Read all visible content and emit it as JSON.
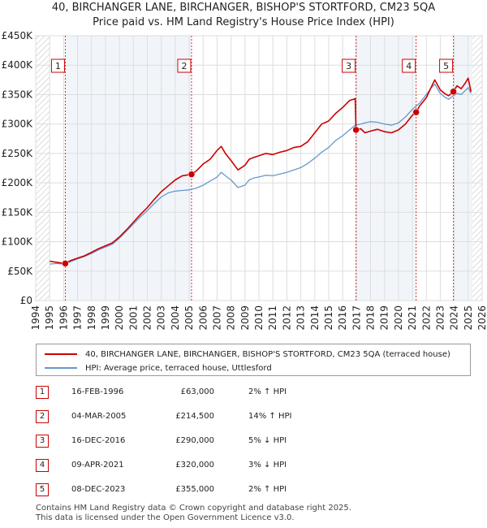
{
  "title_line1": "40, BIRCHANGER LANE, BIRCHANGER, BISHOP'S STORTFORD, CM23 5QA",
  "title_line2": "Price paid vs. HM Land Registry's House Price Index (HPI)",
  "colors": {
    "price_line": "#cc0000",
    "hpi_line": "#6699cc",
    "grid": "#dddddd",
    "plot_bg": "#ffffff",
    "shade": "#e8eef6",
    "hatch": "#bbbbbb"
  },
  "chart_data": {
    "type": "line",
    "xlim": [
      1994,
      2026
    ],
    "ylim": [
      0,
      450000
    ],
    "y_ticks": [
      0,
      50000,
      100000,
      150000,
      200000,
      250000,
      300000,
      350000,
      400000,
      450000
    ],
    "y_tick_labels": [
      "£0",
      "£50K",
      "£100K",
      "£150K",
      "£200K",
      "£250K",
      "£300K",
      "£350K",
      "£400K",
      "£450K"
    ],
    "x_ticks": [
      1994,
      1995,
      1996,
      1997,
      1998,
      1999,
      2000,
      2001,
      2002,
      2003,
      2004,
      2005,
      2006,
      2007,
      2008,
      2009,
      2010,
      2011,
      2012,
      2013,
      2014,
      2015,
      2016,
      2017,
      2018,
      2019,
      2020,
      2021,
      2022,
      2023,
      2024,
      2025,
      2026
    ],
    "data_range_years": [
      1995,
      2025.3
    ],
    "series": [
      {
        "name": "40, BIRCHANGER LANE, BIRCHANGER, BISHOP'S STORTFORD, CM23 5QA (terraced house)",
        "x": [
          1995.0,
          1995.5,
          1996.12,
          1996.5,
          1997.0,
          1997.5,
          1998.0,
          1998.5,
          1999.0,
          1999.5,
          2000.0,
          2000.5,
          2001.0,
          2001.5,
          2002.0,
          2002.5,
          2003.0,
          2003.5,
          2004.0,
          2004.5,
          2005.17,
          2005.5,
          2006.0,
          2006.5,
          2007.0,
          2007.3,
          2007.6,
          2008.0,
          2008.5,
          2009.0,
          2009.3,
          2009.6,
          2010.0,
          2010.5,
          2011.0,
          2011.5,
          2012.0,
          2012.5,
          2013.0,
          2013.5,
          2014.0,
          2014.5,
          2015.0,
          2015.5,
          2016.0,
          2016.5,
          2016.9,
          2016.96,
          2017.3,
          2017.6,
          2018.0,
          2018.5,
          2019.0,
          2019.5,
          2020.0,
          2020.5,
          2021.0,
          2021.27,
          2021.5,
          2022.0,
          2022.3,
          2022.6,
          2023.0,
          2023.3,
          2023.6,
          2023.94,
          2024.2,
          2024.5,
          2024.8,
          2025.0,
          2025.2
        ],
        "values": [
          67000,
          65000,
          63000,
          68000,
          72000,
          76000,
          82000,
          88000,
          93000,
          98000,
          108000,
          120000,
          133000,
          146000,
          158000,
          172000,
          185000,
          195000,
          205000,
          212000,
          214500,
          220000,
          232000,
          240000,
          255000,
          262000,
          250000,
          238000,
          222000,
          230000,
          240000,
          243000,
          246000,
          250000,
          248000,
          252000,
          255000,
          260000,
          262000,
          270000,
          285000,
          300000,
          305000,
          318000,
          328000,
          340000,
          343000,
          290000,
          292000,
          285000,
          288000,
          291000,
          287000,
          285000,
          290000,
          300000,
          315000,
          320000,
          330000,
          345000,
          360000,
          375000,
          358000,
          352000,
          348000,
          355000,
          365000,
          360000,
          370000,
          378000,
          355000
        ]
      },
      {
        "name": "HPI: Average price, terraced house, Uttlesford",
        "x": [
          1995.0,
          1995.5,
          1996.0,
          1996.5,
          1997.0,
          1997.5,
          1998.0,
          1998.5,
          1999.0,
          1999.5,
          2000.0,
          2000.5,
          2001.0,
          2001.5,
          2002.0,
          2002.5,
          2003.0,
          2003.5,
          2004.0,
          2004.5,
          2005.0,
          2005.5,
          2006.0,
          2006.5,
          2007.0,
          2007.3,
          2007.6,
          2008.0,
          2008.5,
          2009.0,
          2009.3,
          2009.6,
          2010.0,
          2010.5,
          2011.0,
          2011.5,
          2012.0,
          2012.5,
          2013.0,
          2013.5,
          2014.0,
          2014.5,
          2015.0,
          2015.5,
          2016.0,
          2016.5,
          2016.9,
          2017.3,
          2017.6,
          2018.0,
          2018.5,
          2019.0,
          2019.5,
          2020.0,
          2020.5,
          2021.0,
          2021.5,
          2022.0,
          2022.3,
          2022.6,
          2023.0,
          2023.3,
          2023.6,
          2023.94,
          2024.2,
          2024.5,
          2024.8,
          2025.0,
          2025.2
        ],
        "values": [
          62000,
          63000,
          62000,
          66000,
          71000,
          75000,
          80000,
          86000,
          91000,
          96000,
          106000,
          118000,
          130000,
          142000,
          153000,
          165000,
          176000,
          183000,
          186000,
          187000,
          188000,
          191000,
          196000,
          203000,
          210000,
          218000,
          212000,
          205000,
          192000,
          196000,
          205000,
          208000,
          210000,
          213000,
          212000,
          215000,
          218000,
          222000,
          226000,
          233000,
          242000,
          252000,
          260000,
          272000,
          280000,
          290000,
          298000,
          300000,
          302000,
          304000,
          303000,
          300000,
          298000,
          302000,
          312000,
          325000,
          335000,
          350000,
          360000,
          368000,
          352000,
          346000,
          342000,
          348000,
          352000,
          350000,
          357000,
          362000,
          352000
        ]
      }
    ],
    "transactions": [
      {
        "id": "1",
        "x": 1996.12,
        "y": 63000
      },
      {
        "id": "2",
        "x": 2005.17,
        "y": 214500
      },
      {
        "id": "3",
        "x": 2016.96,
        "y": 290000
      },
      {
        "id": "4",
        "x": 2021.27,
        "y": 320000
      },
      {
        "id": "5",
        "x": 2023.94,
        "y": 355000
      }
    ]
  },
  "legend": {
    "price_label": "40, BIRCHANGER LANE, BIRCHANGER, BISHOP'S STORTFORD, CM23 5QA (terraced house)",
    "hpi_label": "HPI: Average price, terraced house, Uttlesford"
  },
  "table": [
    {
      "num": "1",
      "date": "16-FEB-1996",
      "price": "£63,000",
      "hpi": "2% ↑ HPI"
    },
    {
      "num": "2",
      "date": "04-MAR-2005",
      "price": "£214,500",
      "hpi": "14% ↑ HPI"
    },
    {
      "num": "3",
      "date": "16-DEC-2016",
      "price": "£290,000",
      "hpi": "5% ↓ HPI"
    },
    {
      "num": "4",
      "date": "09-APR-2021",
      "price": "£320,000",
      "hpi": "3% ↓ HPI"
    },
    {
      "num": "5",
      "date": "08-DEC-2023",
      "price": "£355,000",
      "hpi": "2% ↑ HPI"
    }
  ],
  "footer_line1": "Contains HM Land Registry data © Crown copyright and database right 2025.",
  "footer_line2": "This data is licensed under the Open Government Licence v3.0."
}
